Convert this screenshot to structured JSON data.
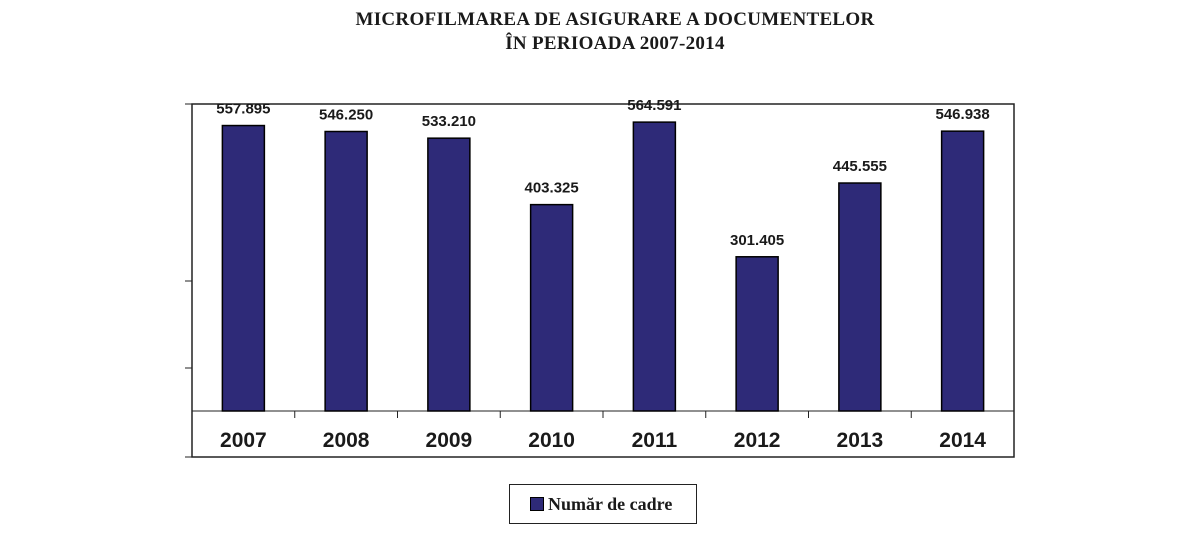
{
  "chart_data": {
    "type": "bar",
    "title_line1": "MICROFILMAREA DE ASIGURARE A DOCUMENTELOR",
    "title_line2": "ÎN PERIOADA 2007-2014",
    "categories": [
      "2007",
      "2008",
      "2009",
      "2010",
      "2011",
      "2012",
      "2013",
      "2014"
    ],
    "series": [
      {
        "name": "Număr de cadre",
        "values": [
          557895,
          546250,
          533210,
          403325,
          564591,
          301405,
          445555,
          546938
        ],
        "labels": [
          "557.895",
          "546.250",
          "533.210",
          "403.325",
          "564.591",
          "301.405",
          "445.555",
          "546.938"
        ]
      }
    ],
    "ylim": [
      0,
      600000
    ],
    "grid": false,
    "legend_position": "bottom",
    "bar_color": "#2e2a78"
  }
}
